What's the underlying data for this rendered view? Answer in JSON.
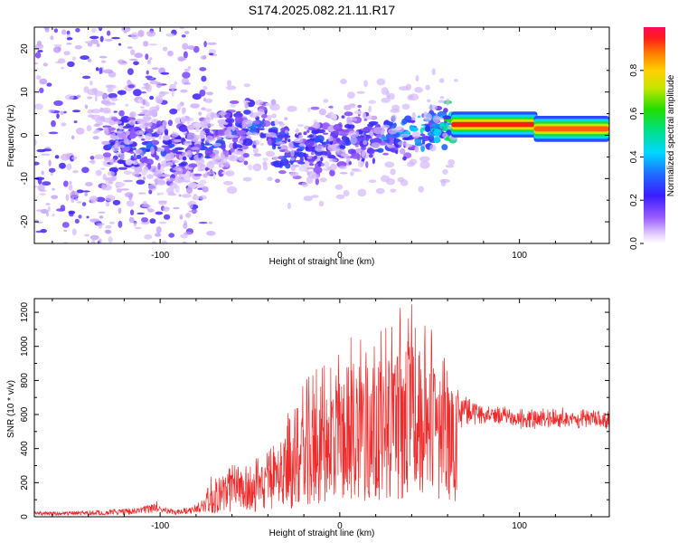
{
  "title": "S174.2025.082.21.11.R17",
  "chart_data": [
    {
      "type": "heatmap",
      "title": "S174.2025.082.21.11.R17",
      "xlabel": "Height of straight line (km)",
      "ylabel": "Frequency (Hz)",
      "xlim": [
        -170,
        150
      ],
      "ylim": [
        -25,
        25
      ],
      "xticks": [
        "-100",
        "0",
        "100"
      ],
      "yticks": [
        "-20",
        "-10",
        "0",
        "10",
        "20"
      ],
      "colorbar": {
        "label": "Normalized spectral amplitude",
        "range": [
          0.0,
          1.0
        ],
        "ticks": [
          "0.0",
          "0.2",
          "0.4",
          "0.6",
          "0.8"
        ],
        "colormap": "rainbow (violet-blue-cyan-green-yellow-red)"
      },
      "ridge": [
        {
          "x": -120,
          "y": -2,
          "amplitude": 0.35
        },
        {
          "x": -80,
          "y": -4,
          "amplitude": 0.3
        },
        {
          "x": -45,
          "y": 3,
          "amplitude": 0.35
        },
        {
          "x": -30,
          "y": -4,
          "amplitude": 0.35
        },
        {
          "x": 0,
          "y": -1,
          "amplitude": 0.3
        },
        {
          "x": 30,
          "y": 0,
          "amplitude": 0.4
        },
        {
          "x": 55,
          "y": 2,
          "amplitude": 0.55
        },
        {
          "x": 70,
          "y": 2.5,
          "amplitude": 0.95
        },
        {
          "x": 100,
          "y": 2.5,
          "amplitude": 0.95
        },
        {
          "x": 120,
          "y": 1.5,
          "amplitude": 0.85
        },
        {
          "x": 145,
          "y": 1.5,
          "amplitude": 0.9
        }
      ]
    },
    {
      "type": "line",
      "xlabel": "Height of straight line (km)",
      "ylabel": "SNR (10 * v/v)",
      "xlim": [
        -170,
        150
      ],
      "ylim": [
        0,
        1280
      ],
      "xticks": [
        "-100",
        "0",
        "100"
      ],
      "yticks": [
        "0",
        "200",
        "400",
        "600",
        "800",
        "1000",
        "1200"
      ],
      "color": "#ee2a2a",
      "series": [
        {
          "x": [
            -170,
            -150,
            -130,
            -110,
            -102,
            -100,
            -90,
            -80,
            -70,
            -60,
            -50,
            -40,
            -30,
            -20,
            -10,
            0,
            10,
            20,
            30,
            40,
            50,
            60,
            70,
            80,
            90,
            100,
            110,
            120,
            130,
            140,
            150
          ],
          "y": [
            20,
            20,
            25,
            35,
            60,
            40,
            25,
            45,
            120,
            180,
            190,
            220,
            300,
            380,
            420,
            480,
            560,
            620,
            680,
            720,
            680,
            620,
            600,
            590,
            580,
            560,
            560,
            570,
            560,
            560,
            560
          ],
          "peak": [
            30,
            40,
            45,
            50,
            60,
            80,
            90,
            120,
            280,
            330,
            340,
            380,
            600,
            820,
            920,
            1000,
            1120,
            1060,
            1220,
            1270,
            1120,
            900,
            780,
            680,
            660,
            640,
            660,
            650,
            640,
            650,
            640
          ]
        }
      ]
    }
  ]
}
